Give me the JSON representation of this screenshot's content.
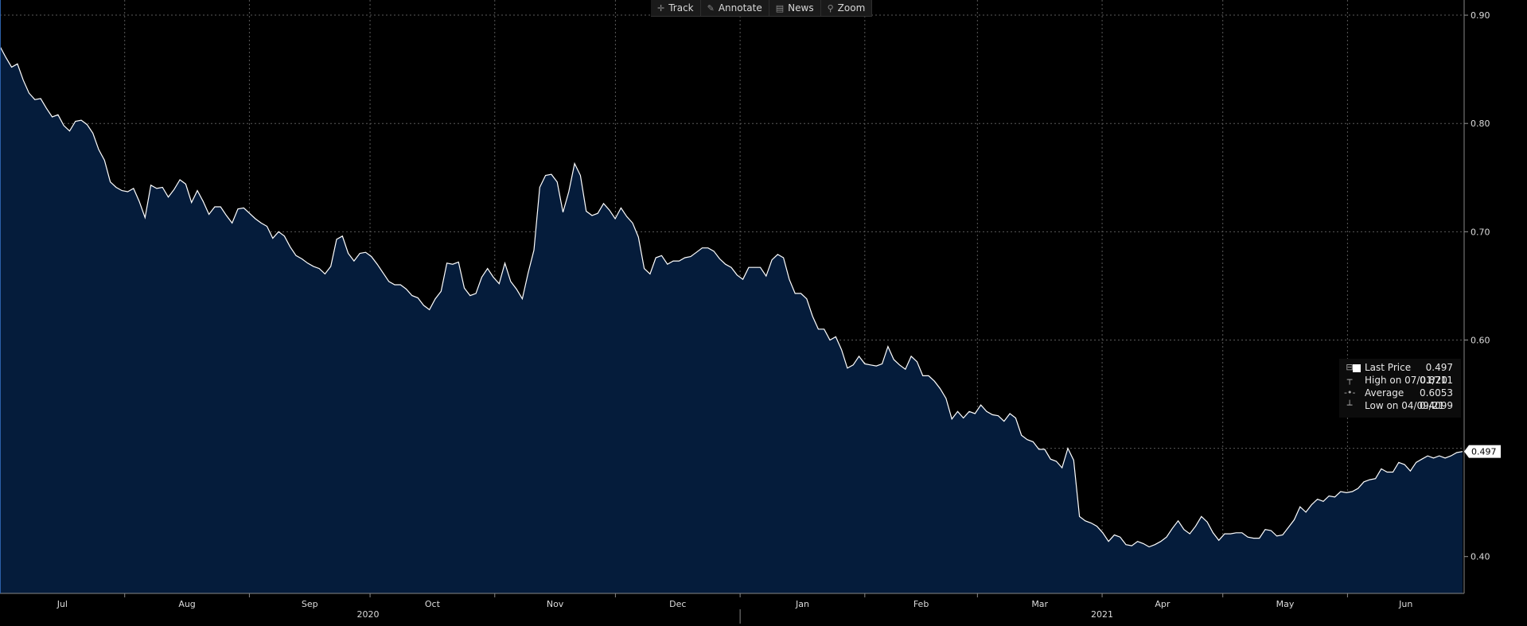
{
  "toolbar": {
    "track": {
      "label": "Track",
      "icon": "crosshair-icon"
    },
    "annotate": {
      "label": "Annotate",
      "icon": "pencil-icon"
    },
    "news": {
      "label": "News",
      "icon": "news-icon"
    },
    "zoom": {
      "label": "Zoom",
      "icon": "magnifier-icon"
    }
  },
  "legend": {
    "last_price": {
      "label": "Last Price",
      "value": "0.497"
    },
    "high": {
      "label": "High on 07/01/20",
      "value": "0.8711"
    },
    "average": {
      "label": "Average",
      "value": "0.6053"
    },
    "low": {
      "label": "Low on 04/09/21",
      "value": "0.4099"
    }
  },
  "colors": {
    "background": "#000000",
    "area_fill": "#051c3b",
    "line": "#ffffff",
    "grid": "#5a5a5a"
  },
  "chart_data": {
    "type": "area",
    "series": [
      {
        "name": "Last Price",
        "values": [
          0.8711,
          0.861,
          0.852,
          0.855,
          0.84,
          0.828,
          0.822,
          0.823,
          0.814,
          0.806,
          0.808,
          0.798,
          0.793,
          0.802,
          0.803,
          0.799,
          0.791,
          0.776,
          0.766,
          0.746,
          0.741,
          0.738,
          0.737,
          0.74,
          0.728,
          0.713,
          0.743,
          0.74,
          0.741,
          0.732,
          0.739,
          0.748,
          0.744,
          0.727,
          0.738,
          0.728,
          0.716,
          0.723,
          0.723,
          0.715,
          0.708,
          0.721,
          0.722,
          0.717,
          0.712,
          0.708,
          0.705,
          0.694,
          0.7,
          0.696,
          0.686,
          0.678,
          0.675,
          0.671,
          0.668,
          0.666,
          0.661,
          0.668,
          0.693,
          0.696,
          0.68,
          0.673,
          0.68,
          0.681,
          0.677,
          0.67,
          0.662,
          0.654,
          0.651,
          0.651,
          0.647,
          0.641,
          0.639,
          0.632,
          0.628,
          0.638,
          0.645,
          0.671,
          0.67,
          0.672,
          0.648,
          0.641,
          0.643,
          0.658,
          0.666,
          0.658,
          0.652,
          0.671,
          0.654,
          0.647,
          0.638,
          0.662,
          0.683,
          0.741,
          0.752,
          0.753,
          0.746,
          0.718,
          0.737,
          0.763,
          0.752,
          0.719,
          0.715,
          0.717,
          0.726,
          0.72,
          0.712,
          0.722,
          0.714,
          0.708,
          0.695,
          0.666,
          0.661,
          0.676,
          0.678,
          0.67,
          0.673,
          0.673,
          0.676,
          0.677,
          0.681,
          0.685,
          0.685,
          0.682,
          0.675,
          0.67,
          0.667,
          0.66,
          0.656,
          0.667,
          0.667,
          0.667,
          0.659,
          0.674,
          0.679,
          0.676,
          0.656,
          0.643,
          0.643,
          0.638,
          0.622,
          0.61,
          0.61,
          0.6,
          0.603,
          0.591,
          0.574,
          0.577,
          0.585,
          0.578,
          0.577,
          0.576,
          0.578,
          0.594,
          0.582,
          0.577,
          0.573,
          0.585,
          0.58,
          0.567,
          0.567,
          0.562,
          0.555,
          0.546,
          0.527,
          0.534,
          0.528,
          0.534,
          0.532,
          0.54,
          0.534,
          0.531,
          0.53,
          0.525,
          0.532,
          0.528,
          0.512,
          0.508,
          0.506,
          0.499,
          0.499,
          0.49,
          0.488,
          0.482,
          0.5,
          0.489,
          0.437,
          0.433,
          0.431,
          0.428,
          0.422,
          0.414,
          0.42,
          0.418,
          0.411,
          0.41,
          0.414,
          0.412,
          0.409,
          0.411,
          0.414,
          0.418,
          0.426,
          0.433,
          0.425,
          0.421,
          0.428,
          0.437,
          0.432,
          0.422,
          0.415,
          0.421,
          0.421,
          0.422,
          0.422,
          0.418,
          0.417,
          0.417,
          0.425,
          0.424,
          0.419,
          0.42,
          0.427,
          0.434,
          0.446,
          0.441,
          0.448,
          0.453,
          0.451,
          0.456,
          0.455,
          0.46,
          0.459,
          0.46,
          0.463,
          0.469,
          0.471,
          0.472,
          0.481,
          0.478,
          0.478,
          0.487,
          0.485,
          0.479,
          0.487,
          0.49,
          0.493,
          0.491,
          0.493,
          0.491,
          0.493,
          0.496,
          0.497
        ]
      }
    ],
    "x_start": "2020-07-01",
    "x_end": "2021-06-30",
    "month_labels": [
      {
        "label": "Jul",
        "date": "2020-07-01"
      },
      {
        "label": "Aug",
        "date": "2020-08-01"
      },
      {
        "label": "Sep",
        "date": "2020-09-01"
      },
      {
        "label": "Oct",
        "date": "2020-10-01"
      },
      {
        "label": "Nov",
        "date": "2020-11-01"
      },
      {
        "label": "Dec",
        "date": "2020-12-01"
      },
      {
        "label": "Jan",
        "date": "2021-01-01"
      },
      {
        "label": "Feb",
        "date": "2021-02-01"
      },
      {
        "label": "Mar",
        "date": "2021-03-01"
      },
      {
        "label": "Apr",
        "date": "2021-04-01"
      },
      {
        "label": "May",
        "date": "2021-05-01"
      },
      {
        "label": "Jun",
        "date": "2021-06-01"
      }
    ],
    "year_labels": [
      {
        "label": "2020",
        "date": "2020-07-01",
        "end": "2020-12-31"
      },
      {
        "label": "2021",
        "date": "2021-01-01",
        "end": "2021-06-30"
      }
    ],
    "yticks": [
      {
        "value": 0.9,
        "label": "0.90"
      },
      {
        "value": 0.8,
        "label": "0.80"
      },
      {
        "value": 0.7,
        "label": "0.70"
      },
      {
        "value": 0.6,
        "label": "0.60"
      },
      {
        "value": 0.4,
        "label": "0.40"
      }
    ],
    "ylim": [
      0.366,
      0.914
    ],
    "last_value_label": "0.497",
    "grid": true,
    "legend_position": "right"
  }
}
